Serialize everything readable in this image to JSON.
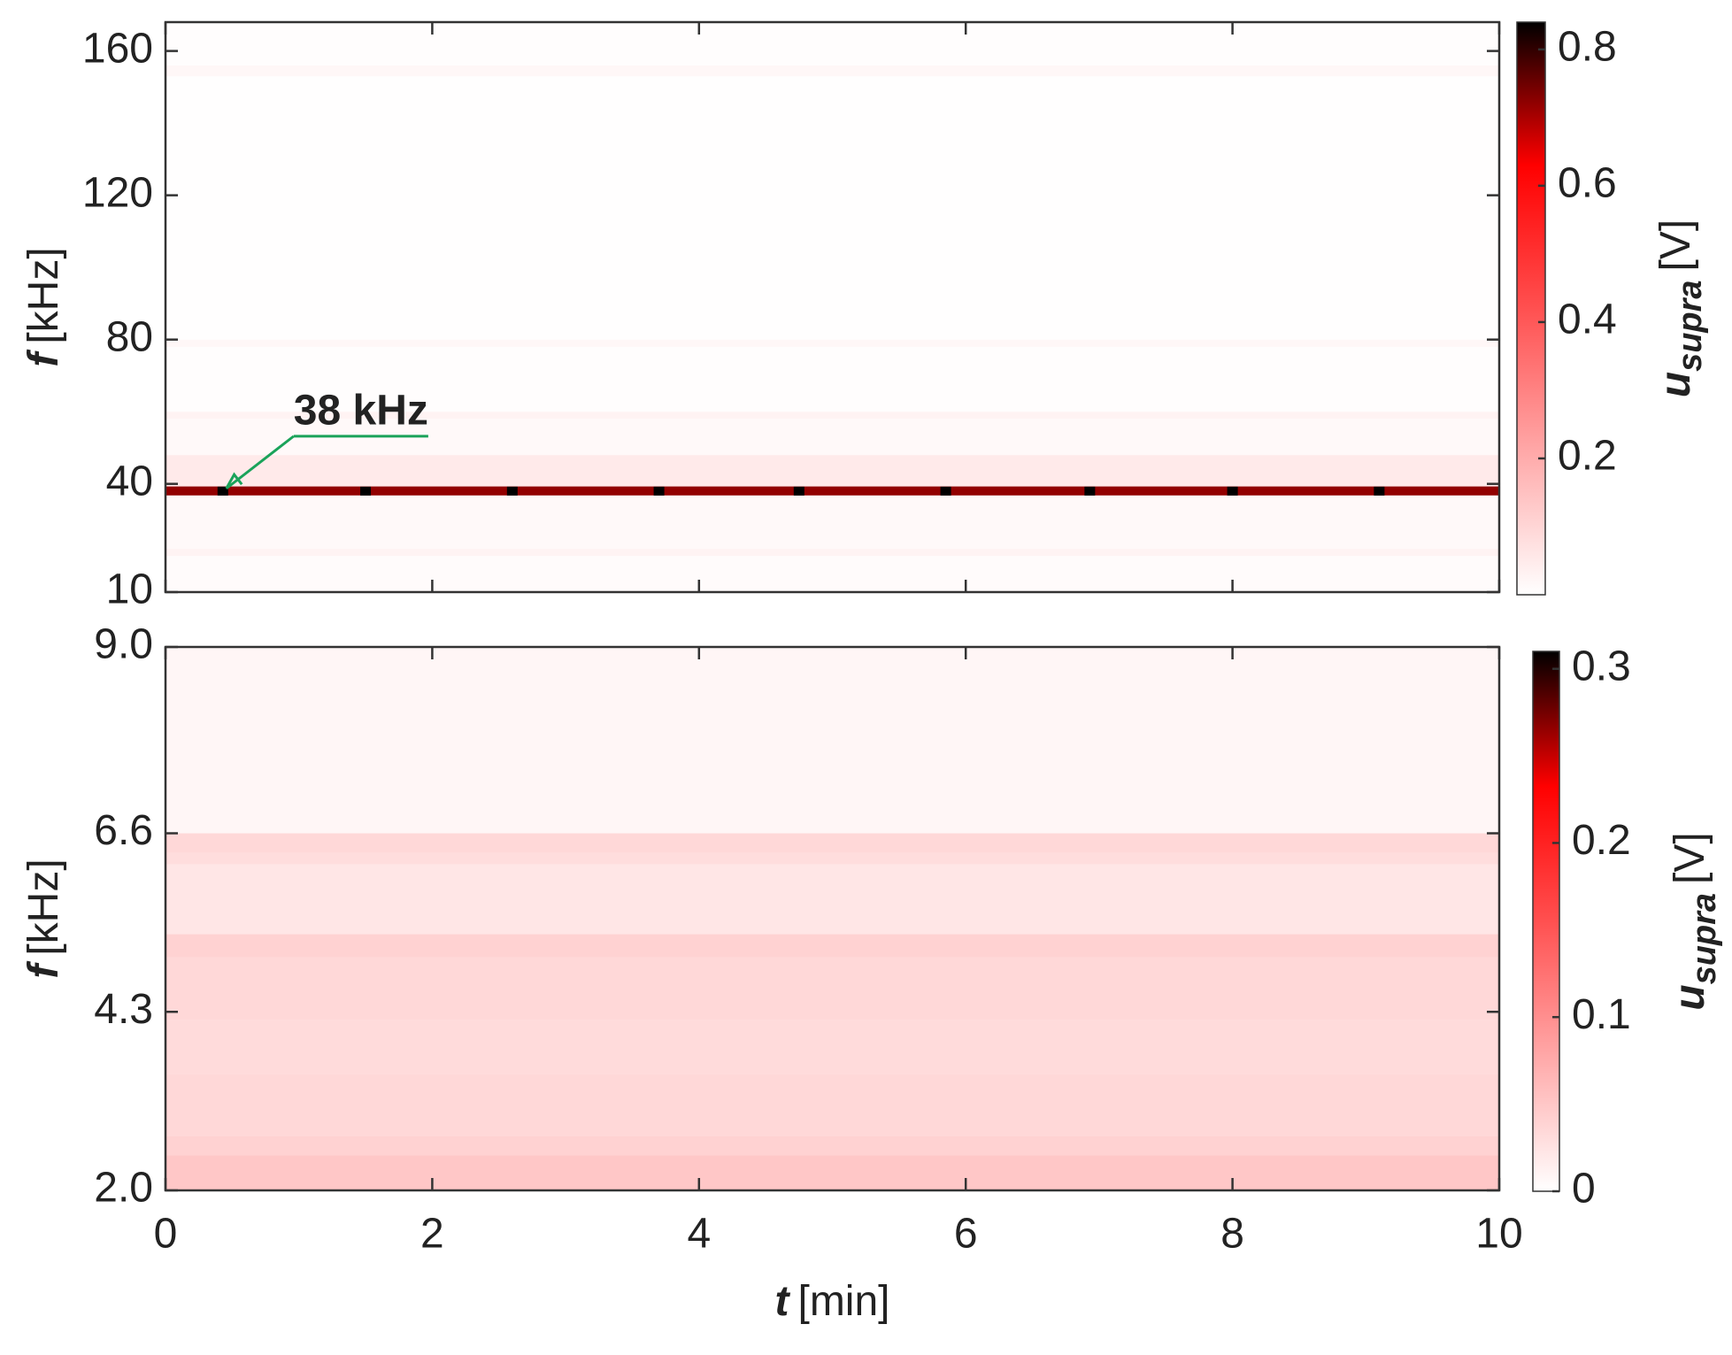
{
  "chart_data": [
    {
      "type": "heatmap",
      "xlim": [
        0,
        10
      ],
      "xticks": [
        0,
        2,
        4,
        6,
        8,
        10
      ],
      "ylim": [
        10,
        168
      ],
      "yticks": [
        10,
        40,
        80,
        120,
        160
      ],
      "ylabel": {
        "symbol": "f",
        "unit": "[kHz]"
      },
      "y_edges": [
        10,
        20,
        22,
        36.8,
        39.3,
        48,
        58,
        60,
        78,
        80,
        153,
        156,
        168
      ],
      "values": [
        0.01,
        0.03,
        0.015,
        0.72,
        0.05,
        0.015,
        0.03,
        0.005,
        0.02,
        0.003,
        0.02,
        0.005
      ],
      "peaks": {
        "x": [
          0.43,
          1.5,
          2.6,
          3.7,
          4.75,
          5.85,
          6.93,
          8.0,
          9.1
        ],
        "y": [
          38,
          38,
          38,
          38,
          38,
          38,
          38,
          38,
          38
        ],
        "values": [
          0.84,
          0.84,
          0.84,
          0.84,
          0.84,
          0.84,
          0.84,
          0.84,
          0.84
        ]
      },
      "annotation": "38 kHz",
      "annotation_color": "#1aa35a",
      "colormap": [
        "#ffffff",
        "#ffa8a8",
        "#ff5050",
        "#ff0000",
        "#000000"
      ],
      "clim": [
        0,
        0.84
      ],
      "cticks": [
        0.2,
        0.4,
        0.6,
        0.8
      ],
      "clabel": {
        "symbol": "u",
        "subscript": "supra",
        "unit": "[V]"
      }
    },
    {
      "type": "heatmap",
      "xlim": [
        0,
        10
      ],
      "xticks": [
        0,
        2,
        4,
        6,
        8,
        10
      ],
      "xlabel": {
        "symbol": "t",
        "unit": "[min]"
      },
      "ylim": [
        2,
        9
      ],
      "yticks": [
        {
          "value": 2,
          "label": "2.0"
        },
        4.3,
        6.6,
        {
          "value": 9,
          "label": "9.0"
        }
      ],
      "ylabel": {
        "symbol": "f",
        "unit": "[kHz]"
      },
      "y_edges": [
        2,
        2.45,
        2.7,
        3.5,
        4.2,
        5.0,
        5.3,
        6.2,
        6.35,
        6.6,
        9
      ],
      "values": [
        0.05,
        0.04,
        0.035,
        0.032,
        0.035,
        0.04,
        0.022,
        0.03,
        0.035,
        0.008
      ],
      "colormap": [
        "#ffffff",
        "#ffa8a8",
        "#ff5050",
        "#ff0000",
        "#000000"
      ],
      "clim": [
        0,
        0.31
      ],
      "cticks": [
        0,
        0.1,
        0.2,
        0.3
      ],
      "clabel": {
        "symbol": "u",
        "subscript": "supra",
        "unit": "[V]"
      }
    }
  ]
}
